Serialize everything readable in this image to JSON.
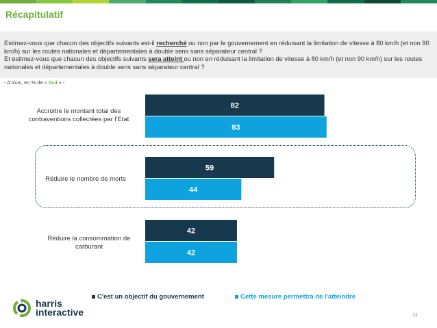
{
  "page": {
    "title": "Récapitulatif",
    "question": {
      "q1_before": "Estimez-vous que chacun des objectifs suivants est-il ",
      "q1_emph": "recherché",
      "q1_after": " ou non par le gouvernement en réduisant la limitation de vitesse à 80 km/h (et non 90 km/h) sur les routes nationales et départementales à double sens sans séparateur central ?",
      "q2_before": "Et estimez-vous que chacun des objectifs suivants ",
      "q2_emph": "sera atteint ",
      "q2_after": "ou non en réduisant la limitation de vitesse à 80 km/h (et non 90 km/h) sur les routes nationales et départementales à double sens sans séparateur central ?"
    },
    "base_prefix": "- A tous, en % de « ",
    "base_emph": "Oui",
    "base_suffix": " » -",
    "brand_line1": "harris",
    "brand_line2": "interactive",
    "page_number": "11",
    "colors": {
      "series1": "#18384d",
      "series2": "#0ea3de",
      "accent": "#6fae3c",
      "topbar": [
        "#6fae3c",
        "#8dc63f",
        "#b5d334",
        "#4caa6e",
        "#1e8a55",
        "#0e6e4a",
        "#0b5a3e",
        "#1e7f51",
        "#2fa463",
        "#0e6e4a",
        "#0b4a36",
        "#1e8a55"
      ]
    }
  },
  "chart_data": {
    "type": "bar",
    "orientation": "horizontal",
    "categories": [
      "Accroitre le montant total des contraventions collectées par l'Etat",
      "Réduire le nombre de morts",
      "Réduire la consommation de carburant"
    ],
    "series": [
      {
        "name": "C'est un objectif du gouvernement",
        "values": [
          82,
          59,
          42
        ]
      },
      {
        "name": "Cette mesure permettra de l'atteindre",
        "values": [
          83,
          44,
          42
        ]
      }
    ],
    "xlim": [
      0,
      100
    ],
    "highlighted_category": "Réduire le nombre de morts",
    "legend_position": "bottom"
  }
}
